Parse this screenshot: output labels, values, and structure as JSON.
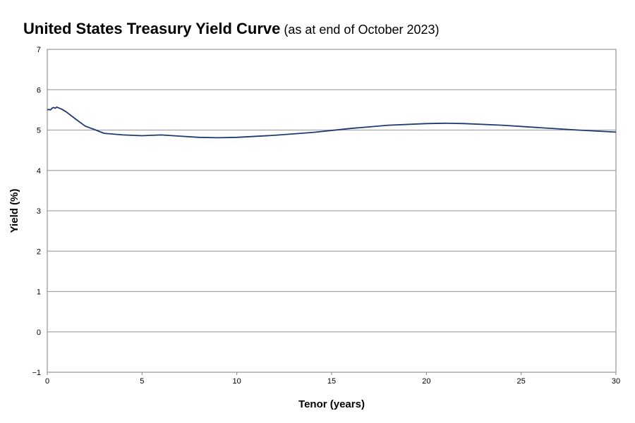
{
  "chart_data": {
    "type": "line",
    "title": "United States Treasury Yield Curve",
    "subtitle": "(as at end of October 2023)",
    "xlabel": "Tenor (years)",
    "ylabel": "Yield (%)",
    "xlim": [
      0,
      30
    ],
    "ylim": [
      -1,
      7
    ],
    "xticks": [
      0,
      5,
      10,
      15,
      20,
      25,
      30
    ],
    "yticks": [
      -1,
      0,
      1,
      2,
      3,
      4,
      5,
      6,
      7
    ],
    "ytick_labels": [
      "−1",
      "0",
      "1",
      "2",
      "3",
      "4",
      "5",
      "6",
      "7"
    ],
    "grid": "horizontal",
    "line_color": "#1f3a6e",
    "series": [
      {
        "x": [
          0,
          0.08,
          0.17,
          0.25,
          0.33,
          0.42,
          0.5,
          0.75,
          1,
          1.5,
          2,
          2.5,
          3,
          4,
          5,
          6,
          7,
          8,
          9,
          10,
          12,
          14,
          16,
          18,
          20,
          21,
          22,
          24,
          26,
          28,
          30
        ],
        "y": [
          5.5,
          5.51,
          5.5,
          5.54,
          5.56,
          5.54,
          5.57,
          5.52,
          5.45,
          5.27,
          5.1,
          5.01,
          4.92,
          4.88,
          4.86,
          4.88,
          4.85,
          4.82,
          4.81,
          4.82,
          4.87,
          4.94,
          5.04,
          5.12,
          5.16,
          5.17,
          5.16,
          5.12,
          5.06,
          5.0,
          4.95
        ]
      }
    ]
  }
}
